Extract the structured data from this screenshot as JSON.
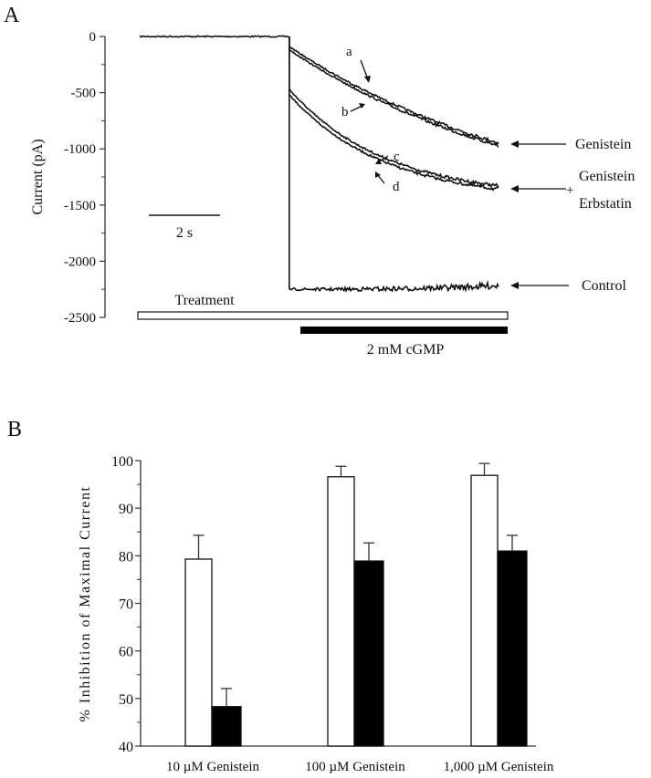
{
  "figure": {
    "panel_labels": [
      "A",
      "B"
    ]
  },
  "chart_data": [
    {
      "panel": "A",
      "type": "line",
      "title": "",
      "xlabel": "",
      "ylabel": "Current (pA)",
      "ylim": [
        -2500,
        0
      ],
      "yticks": [
        0,
        -500,
        -1000,
        -1500,
        -2000,
        -2500
      ],
      "ytick_labels": [
        "0",
        "-500",
        "-1000",
        "-1500",
        "-2000",
        "-2500"
      ],
      "ytick_minor_step": 250,
      "time_range_s": [
        0,
        10.1
      ],
      "cgmp_onset_s": 4.2,
      "scale_bar": {
        "label": "2 s",
        "seconds": 2
      },
      "series": [
        {
          "name": "a",
          "group": "Genistein",
          "start_pA": -90,
          "end_pA": -950
        },
        {
          "name": "b",
          "group": "Genistein",
          "start_pA": -120,
          "end_pA": -975
        },
        {
          "name": "c",
          "group": "Genistein + Erbstatin",
          "start_pA": -470,
          "end_pA": -1330
        },
        {
          "name": "d",
          "group": "Genistein + Erbstatin",
          "start_pA": -520,
          "end_pA": -1360
        },
        {
          "name": "Control",
          "group": "Control",
          "start_pA": -2250,
          "end_pA": -2215
        }
      ],
      "baseline_pA": 0,
      "trace_annotations": [
        "a",
        "b",
        "c",
        "d"
      ],
      "legend": [
        {
          "label": "Genistein",
          "value_pA": -960
        },
        {
          "label_line1": "Genistein",
          "plus": "+",
          "label_line2": "Erbstatin",
          "value_pA": -1345
        },
        {
          "label": "Control",
          "value_pA": -2215
        }
      ],
      "bars": {
        "treatment": {
          "label": "Treatment",
          "start_s": 0,
          "end_s": 10.4,
          "fill": "#ffffff"
        },
        "cgmp": {
          "label": "2 mM cGMP",
          "start_s": 4.5,
          "end_s": 10.4,
          "fill": "#000000"
        }
      }
    },
    {
      "panel": "B",
      "type": "bar",
      "title": "",
      "xlabel": "",
      "ylabel": "% Inhibition of Maximal Current",
      "ylim": [
        40,
        100
      ],
      "yticks": [
        40,
        50,
        60,
        70,
        80,
        90,
        100
      ],
      "ytick_labels": [
        "40",
        "50",
        "60",
        "70",
        "80",
        "90",
        "100"
      ],
      "ytick_minor_step": 5,
      "categories": [
        "10 µM Genistein",
        "100 µM Genistein",
        "1,000 µM Genistein"
      ],
      "series": [
        {
          "name": "Genistein",
          "fill": "#ffffff",
          "values": [
            79.3,
            96.6,
            96.9
          ],
          "errors": [
            5.0,
            2.2,
            2.5
          ]
        },
        {
          "name": "Genistein + Erbstatin",
          "fill": "#000000",
          "values": [
            48.3,
            78.9,
            81.0
          ],
          "errors": [
            3.8,
            3.8,
            3.3
          ]
        }
      ]
    }
  ]
}
